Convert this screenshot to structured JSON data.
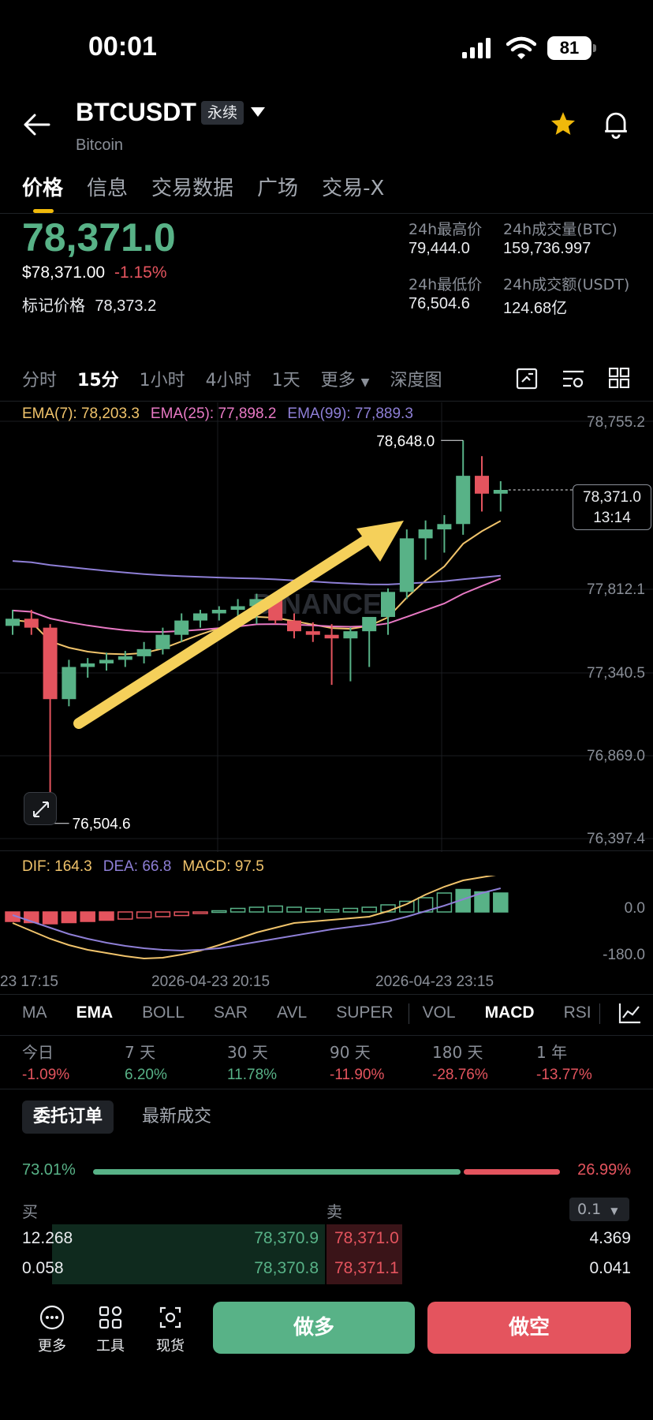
{
  "status_bar": {
    "time": "00:01",
    "battery": "81"
  },
  "header": {
    "symbol": "BTCUSDT",
    "badge": "永续",
    "name": "Bitcoin"
  },
  "tabs": [
    "价格",
    "信息",
    "交易数据",
    "广场",
    "交易-X"
  ],
  "price": {
    "last": "78,371.0",
    "usd": "$78,371.00",
    "change": "-1.15%",
    "mark_label": "标记价格",
    "mark_value": "78,373.2"
  },
  "stats": {
    "high_label": "24h最高价",
    "high": "79,444.0",
    "low_label": "24h最低价",
    "low": "76,504.6",
    "vol_btc_label": "24h成交量(BTC)",
    "vol_btc": "159,736.997",
    "vol_usdt_label": "24h成交额(USDT)",
    "vol_usdt": "124.68亿"
  },
  "intervals": [
    "分时",
    "15分",
    "1小时",
    "4小时",
    "1天",
    "更多",
    "深度图"
  ],
  "ema_legend": {
    "ema7": "EMA(7): 78,203.3",
    "ema25": "EMA(25): 77,898.2",
    "ema99": "EMA(99): 77,889.3"
  },
  "price_axis": [
    "78,755.2",
    "77,812.1",
    "77,340.5",
    "76,869.0",
    "76,397.4"
  ],
  "current_price_tag": {
    "price": "78,371.0",
    "countdown": "13:14"
  },
  "annotations": {
    "high": "78,648.0",
    "low": "76,504.6"
  },
  "watermark": "BINANCE",
  "macd_legend": {
    "dif": "DIF: 164.3",
    "dea": "DEA: 66.8",
    "macd": "MACD: 97.5"
  },
  "macd_axis": [
    "0.0",
    "-180.0"
  ],
  "time_axis": [
    "23 17:15",
    "2026-04-23 20:15",
    "2026-04-23 23:15"
  ],
  "indicators": [
    "MA",
    "EMA",
    "BOLL",
    "SAR",
    "AVL",
    "SUPER",
    "VOL",
    "MACD",
    "RSI"
  ],
  "performance": [
    {
      "label": "今日",
      "value": "-1.09%"
    },
    {
      "label": "7 天",
      "value": "6.20%"
    },
    {
      "label": "30 天",
      "value": "11.78%"
    },
    {
      "label": "90 天",
      "value": "-11.90%"
    },
    {
      "label": "180 天",
      "value": "-28.76%"
    },
    {
      "label": "1 年",
      "value": "-13.77%"
    }
  ],
  "orderbook": {
    "tab_active": "委托订单",
    "tab_other": "最新成交",
    "buy_ratio": "73.01%",
    "sell_ratio": "26.99%",
    "buy_label": "买",
    "sell_label": "卖",
    "depth": "0.1",
    "rows": [
      {
        "bid_qty": "12.268",
        "bid_price": "78,370.9",
        "ask_price": "78,371.0",
        "ask_qty": "4.369"
      },
      {
        "bid_qty": "0.058",
        "bid_price": "78,370.8",
        "ask_price": "78,371.1",
        "ask_qty": "0.041"
      }
    ]
  },
  "footer": {
    "more": "更多",
    "tools": "工具",
    "spot": "现货",
    "long": "做多",
    "short": "做空"
  },
  "colors": {
    "up": "#58b287",
    "down": "#e4545e",
    "accent": "#f0b90b",
    "ema7": "#f0c36b",
    "ema25": "#e879c4",
    "ema99": "#8e7fd6"
  },
  "chart_data": {
    "type": "candlestick",
    "interval": "15分",
    "series": [
      {
        "name": "EMA(7)",
        "value": 78203.3
      },
      {
        "name": "EMA(25)",
        "value": 77898.2
      },
      {
        "name": "EMA(99)",
        "value": 77889.3
      }
    ],
    "ylim": [
      76397.4,
      78755.2
    ],
    "high": 78648.0,
    "low": 76504.6,
    "last": 78371.0,
    "macd": {
      "dif": 164.3,
      "dea": 66.8,
      "macd": 97.5,
      "ylim": [
        -180.0,
        0.0
      ]
    },
    "candles_ohlc": [
      [
        77610,
        77700,
        77560,
        77650
      ],
      [
        77650,
        77700,
        77560,
        77600
      ],
      [
        77600,
        77620,
        76504.6,
        77200
      ],
      [
        77200,
        77420,
        77160,
        77380
      ],
      [
        77380,
        77430,
        77320,
        77400
      ],
      [
        77400,
        77460,
        77360,
        77420
      ],
      [
        77420,
        77470,
        77380,
        77440
      ],
      [
        77440,
        77520,
        77400,
        77480
      ],
      [
        77480,
        77600,
        77450,
        77560
      ],
      [
        77560,
        77680,
        77520,
        77640
      ],
      [
        77640,
        77700,
        77600,
        77680
      ],
      [
        77680,
        77720,
        77640,
        77700
      ],
      [
        77700,
        77760,
        77660,
        77720
      ],
      [
        77720,
        77790,
        77620,
        77760
      ],
      [
        77760,
        77800,
        77620,
        77640
      ],
      [
        77640,
        77680,
        77540,
        77580
      ],
      [
        77580,
        77630,
        77520,
        77560
      ],
      [
        77560,
        77620,
        77280,
        77540
      ],
      [
        77540,
        77600,
        77300,
        77580
      ],
      [
        77580,
        77640,
        77380,
        77660
      ],
      [
        77660,
        77820,
        77560,
        77800
      ],
      [
        77800,
        78150,
        77760,
        78100
      ],
      [
        78100,
        78200,
        77980,
        78150
      ],
      [
        78150,
        78230,
        78020,
        78180
      ],
      [
        78180,
        78648,
        78120,
        78450
      ],
      [
        78450,
        78560,
        78250,
        78350
      ],
      [
        78350,
        78420,
        78250,
        78371
      ]
    ]
  }
}
